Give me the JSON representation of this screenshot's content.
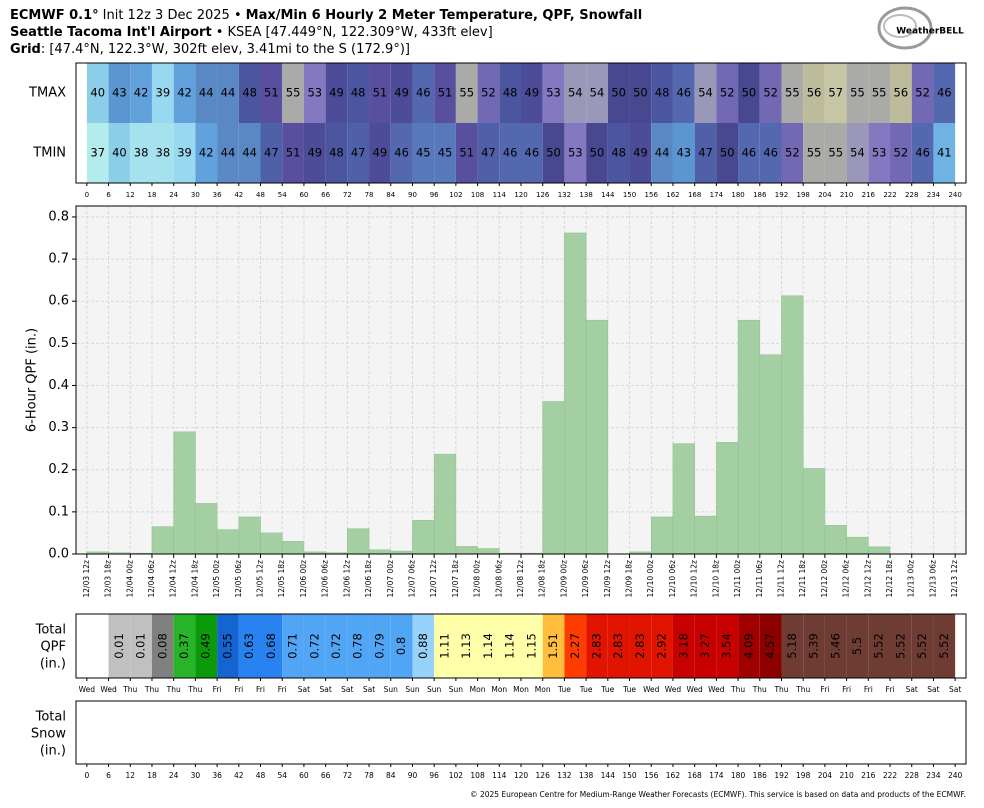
{
  "header": {
    "model": "ECMWF 0.1°",
    "init": "Init 12z 3 Dec 2025 •",
    "title": "Max/Min 6 Hourly 2 Meter Temperature, QPF, Snowfall",
    "station": "Seattle Tacoma Int'l Airport",
    "station_info": "• KSEA [47.449°N, 122.309°W, 433ft elev]",
    "grid_label": "Grid",
    "grid_info": ": [47.4°N, 122.3°W, 302ft elev, 3.41mi to the S (172.9°)]"
  },
  "logo": "WeatherBELL",
  "footer": "© 2025 European Centre for Medium-Range Weather Forecasts (ECMWF). This service is based on data and products of the ECMWF.",
  "chart_data": [
    {
      "type": "heatmap",
      "xlim": [
        -3,
        243
      ],
      "xticks": [
        0,
        6,
        12,
        18,
        24,
        30,
        36,
        42,
        48,
        54,
        60,
        66,
        72,
        78,
        84,
        90,
        96,
        102,
        108,
        114,
        120,
        126,
        132,
        138,
        144,
        150,
        156,
        162,
        168,
        174,
        180,
        186,
        192,
        198,
        204,
        210,
        216,
        222,
        228,
        234,
        240
      ],
      "series": [
        {
          "name": "TMAX",
          "values": [
            40,
            43,
            42,
            39,
            42,
            44,
            44,
            48,
            51,
            55,
            53,
            49,
            48,
            51,
            49,
            46,
            51,
            55,
            52,
            48,
            49,
            53,
            54,
            54,
            50,
            50,
            48,
            46,
            54,
            52,
            50,
            52,
            55,
            56,
            57,
            55,
            55,
            56,
            52,
            46
          ]
        },
        {
          "name": "TMIN",
          "values": [
            37,
            40,
            38,
            38,
            39,
            42,
            44,
            44,
            47,
            51,
            49,
            48,
            47,
            49,
            46,
            45,
            45,
            51,
            47,
            46,
            46,
            50,
            53,
            50,
            48,
            49,
            44,
            43,
            47,
            50,
            46,
            46,
            52,
            55,
            55,
            54,
            53,
            52,
            46,
            41
          ]
        }
      ],
      "color_scale": [
        {
          "value": 37,
          "color": "#b4ecec"
        },
        {
          "value": 38,
          "color": "#a6e2ee"
        },
        {
          "value": 39,
          "color": "#98d8f0"
        },
        {
          "value": 40,
          "color": "#8ccde8"
        },
        {
          "value": 41,
          "color": "#6fb2e4"
        },
        {
          "value": 42,
          "color": "#62a2dc"
        },
        {
          "value": 43,
          "color": "#5c96d2"
        },
        {
          "value": 44,
          "color": "#5a88c4"
        },
        {
          "value": 45,
          "color": "#5878bc"
        },
        {
          "value": 46,
          "color": "#5468b0"
        },
        {
          "value": 47,
          "color": "#5060a8"
        },
        {
          "value": 48,
          "color": "#4c56a0"
        },
        {
          "value": 49,
          "color": "#4c4c98"
        },
        {
          "value": 50,
          "color": "#484890"
        },
        {
          "value": 51,
          "color": "#58509e"
        },
        {
          "value": 52,
          "color": "#7268b4"
        },
        {
          "value": 53,
          "color": "#8478c0"
        },
        {
          "value": 54,
          "color": "#9a98b8"
        },
        {
          "value": 55,
          "color": "#aaaaa8"
        },
        {
          "value": 56,
          "color": "#bcbc9c"
        },
        {
          "value": 57,
          "color": "#c6c6a4"
        }
      ]
    },
    {
      "type": "histogram",
      "ylabel": "6-Hour QPF (in.)",
      "color": "#a3cfa3",
      "grid": true,
      "xlim": [
        -3,
        243
      ],
      "ylim": [
        0,
        0.826
      ],
      "yticks": [
        {
          "value": 0,
          "label": "0.0"
        },
        0.1,
        0.2,
        0.3,
        0.4,
        0.5,
        0.6,
        0.7,
        0.8
      ],
      "bins": [
        0,
        6,
        12,
        18,
        24,
        30,
        36,
        42,
        48,
        54,
        60,
        66,
        72,
        78,
        84,
        90,
        96,
        102,
        108,
        114,
        120,
        126,
        132,
        138,
        144,
        150,
        156,
        162,
        168,
        174,
        180,
        186,
        192,
        198,
        204,
        210,
        216,
        222,
        228,
        234,
        240
      ],
      "values": [
        0.005,
        0.003,
        0.002,
        0.065,
        0.29,
        0.12,
        0.058,
        0.088,
        0.05,
        0.03,
        0.005,
        0.003,
        0.06,
        0.01,
        0.007,
        0.08,
        0.237,
        0.018,
        0.013,
        0.002,
        0.002,
        0.362,
        0.762,
        0.555,
        0,
        0.005,
        0.088,
        0.262,
        0.09,
        0.265,
        0.555,
        0.473,
        0.613,
        0.203,
        0.068,
        0.04,
        0.017,
        0,
        0,
        0
      ],
      "xticks": [
        {
          "value": 0,
          "label": "12/03 12z"
        },
        {
          "value": 6,
          "label": "12/03 18z"
        },
        {
          "value": 12,
          "label": "12/04 00z"
        },
        {
          "value": 18,
          "label": "12/04 06z"
        },
        {
          "value": 24,
          "label": "12/04 12z"
        },
        {
          "value": 30,
          "label": "12/04 18z"
        },
        {
          "value": 36,
          "label": "12/05 00z"
        },
        {
          "value": 42,
          "label": "12/05 06z"
        },
        {
          "value": 48,
          "label": "12/05 12z"
        },
        {
          "value": 54,
          "label": "12/05 18z"
        },
        {
          "value": 60,
          "label": "12/06 00z"
        },
        {
          "value": 66,
          "label": "12/06 06z"
        },
        {
          "value": 72,
          "label": "12/06 12z"
        },
        {
          "value": 78,
          "label": "12/06 18z"
        },
        {
          "value": 84,
          "label": "12/07 00z"
        },
        {
          "value": 90,
          "label": "12/07 06z"
        },
        {
          "value": 96,
          "label": "12/07 12z"
        },
        {
          "value": 102,
          "label": "12/07 18z"
        },
        {
          "value": 108,
          "label": "12/08 00z"
        },
        {
          "value": 114,
          "label": "12/08 06z"
        },
        {
          "value": 120,
          "label": "12/08 12z"
        },
        {
          "value": 126,
          "label": "12/08 18z"
        },
        {
          "value": 132,
          "label": "12/09 00z"
        },
        {
          "value": 138,
          "label": "12/09 06z"
        },
        {
          "value": 144,
          "label": "12/09 12z"
        },
        {
          "value": 150,
          "label": "12/09 18z"
        },
        {
          "value": 156,
          "label": "12/10 00z"
        },
        {
          "value": 162,
          "label": "12/10 06z"
        },
        {
          "value": 168,
          "label": "12/10 12z"
        },
        {
          "value": 174,
          "label": "12/10 18z"
        },
        {
          "value": 180,
          "label": "12/11 00z"
        },
        {
          "value": 186,
          "label": "12/11 06z"
        },
        {
          "value": 192,
          "label": "12/11 12z"
        },
        {
          "value": 198,
          "label": "12/11 18z"
        },
        {
          "value": 204,
          "label": "12/12 00z"
        },
        {
          "value": 210,
          "label": "12/12 06z"
        },
        {
          "value": 216,
          "label": "12/12 12z"
        },
        {
          "value": 222,
          "label": "12/12 18z"
        },
        {
          "value": 228,
          "label": "12/13 00z"
        },
        {
          "value": 234,
          "label": "12/13 06z"
        },
        {
          "value": 240,
          "label": "12/13 12z"
        }
      ]
    },
    {
      "type": "table",
      "label": [
        "Total",
        "QPF",
        "(in.)"
      ],
      "xlim": [
        -3,
        243
      ],
      "values": [
        null,
        0.01,
        0.01,
        0.08,
        0.37,
        0.49,
        0.55,
        0.63,
        0.68,
        0.71,
        0.72,
        0.72,
        0.78,
        0.79,
        0.8,
        0.88,
        1.11,
        1.13,
        1.14,
        1.14,
        1.15,
        1.51,
        2.27,
        2.83,
        2.83,
        2.83,
        2.92,
        3.18,
        3.27,
        3.54,
        4.09,
        4.57,
        5.18,
        5.39,
        5.46,
        5.5,
        5.52,
        5.52,
        5.52,
        5.52
      ],
      "colors": [
        "#ffffff",
        "#c0c0c0",
        "#c0c0c0",
        "#808080",
        "#28b428",
        "#0a9a0a",
        "#1464d2",
        "#2882f0",
        "#2882f0",
        "#50a5f5",
        "#50a5f5",
        "#50a5f5",
        "#50a5f5",
        "#50a5f5",
        "#50a5f5",
        "#96d2fa",
        "#ffffaa",
        "#ffffaa",
        "#ffffaa",
        "#ffffaa",
        "#ffffaa",
        "#ffbe3c",
        "#ff3c00",
        "#e11400",
        "#e11400",
        "#e11400",
        "#e11400",
        "#c80000",
        "#c80000",
        "#c80000",
        "#a00000",
        "#8c0000",
        "#6e3c32",
        "#6e3c32",
        "#6e3c32",
        "#6e3c32",
        "#6e3c32",
        "#6e3c32",
        "#6e3c32",
        "#6e3c32"
      ],
      "xticks": [
        {
          "value": 0,
          "label": "Wed"
        },
        {
          "value": 6,
          "label": "Wed"
        },
        {
          "value": 12,
          "label": "Thu"
        },
        {
          "value": 18,
          "label": "Thu"
        },
        {
          "value": 24,
          "label": "Thu"
        },
        {
          "value": 30,
          "label": "Thu"
        },
        {
          "value": 36,
          "label": "Fri"
        },
        {
          "value": 42,
          "label": "Fri"
        },
        {
          "value": 48,
          "label": "Fri"
        },
        {
          "value": 54,
          "label": "Fri"
        },
        {
          "value": 60,
          "label": "Sat"
        },
        {
          "value": 66,
          "label": "Sat"
        },
        {
          "value": 72,
          "label": "Sat"
        },
        {
          "value": 78,
          "label": "Sat"
        },
        {
          "value": 84,
          "label": "Sun"
        },
        {
          "value": 90,
          "label": "Sun"
        },
        {
          "value": 96,
          "label": "Sun"
        },
        {
          "value": 102,
          "label": "Sun"
        },
        {
          "value": 108,
          "label": "Mon"
        },
        {
          "value": 114,
          "label": "Mon"
        },
        {
          "value": 120,
          "label": "Mon"
        },
        {
          "value": 126,
          "label": "Mon"
        },
        {
          "value": 132,
          "label": "Tue"
        },
        {
          "value": 138,
          "label": "Tue"
        },
        {
          "value": 144,
          "label": "Tue"
        },
        {
          "value": 150,
          "label": "Tue"
        },
        {
          "value": 156,
          "label": "Wed"
        },
        {
          "value": 162,
          "label": "Wed"
        },
        {
          "value": 168,
          "label": "Wed"
        },
        {
          "value": 174,
          "label": "Wed"
        },
        {
          "value": 180,
          "label": "Thu"
        },
        {
          "value": 186,
          "label": "Thu"
        },
        {
          "value": 192,
          "label": "Thu"
        },
        {
          "value": 198,
          "label": "Thu"
        },
        {
          "value": 204,
          "label": "Fri"
        },
        {
          "value": 210,
          "label": "Fri"
        },
        {
          "value": 216,
          "label": "Fri"
        },
        {
          "value": 222,
          "label": "Fri"
        },
        {
          "value": 228,
          "label": "Sat"
        },
        {
          "value": 234,
          "label": "Sat"
        },
        {
          "value": 240,
          "label": "Sat"
        }
      ]
    },
    {
      "type": "table",
      "label": [
        "Total",
        "Snow",
        "(in.)"
      ],
      "xlim": [
        -3,
        243
      ],
      "xticks": [
        0,
        6,
        12,
        18,
        24,
        30,
        36,
        42,
        48,
        54,
        60,
        66,
        72,
        78,
        84,
        90,
        96,
        102,
        108,
        114,
        120,
        126,
        132,
        138,
        144,
        150,
        156,
        162,
        168,
        174,
        180,
        186,
        192,
        198,
        204,
        210,
        216,
        222,
        228,
        234,
        240
      ]
    }
  ]
}
